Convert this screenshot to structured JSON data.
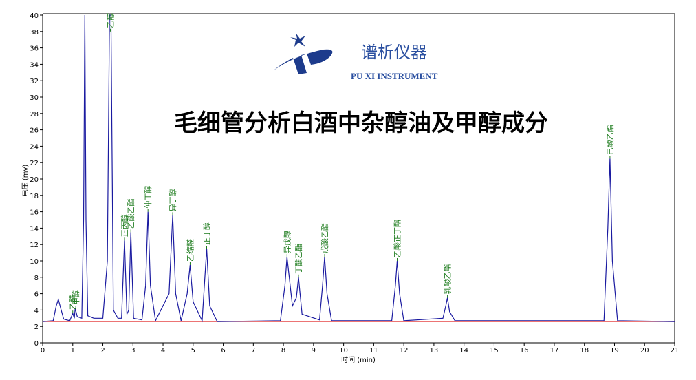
{
  "chart_data": {
    "type": "line",
    "title": "毛细管分析白酒中杂醇油及甲醇成分",
    "brand": {
      "name": "谱析仪器",
      "name_en": "PU XI INSTRUMENT"
    },
    "xlabel": "时间 (min)",
    "ylabel": "电压 (mv)",
    "xlim": [
      0,
      21
    ],
    "ylim": [
      0,
      40
    ],
    "xticks": [
      0,
      1,
      2,
      3,
      4,
      5,
      6,
      7,
      8,
      9,
      10,
      11,
      12,
      13,
      14,
      15,
      16,
      17,
      18,
      19,
      20,
      21
    ],
    "yticks": [
      0,
      2,
      4,
      6,
      8,
      10,
      12,
      14,
      16,
      18,
      20,
      22,
      24,
      26,
      28,
      30,
      32,
      34,
      36,
      38,
      40
    ],
    "x": [
      0,
      0.35,
      0.45,
      0.52,
      0.6,
      0.7,
      0.9,
      1.0,
      1.05,
      1.08,
      1.15,
      1.3,
      1.36,
      1.4,
      1.44,
      1.5,
      1.7,
      2.0,
      2.15,
      2.22,
      2.27,
      2.35,
      2.5,
      2.62,
      2.72,
      2.8,
      2.86,
      2.93,
      3.02,
      3.3,
      3.42,
      3.5,
      3.58,
      3.75,
      4.2,
      4.32,
      4.42,
      4.6,
      4.8,
      4.9,
      5.0,
      5.3,
      5.45,
      5.55,
      5.8,
      7.9,
      8.05,
      8.12,
      8.3,
      8.43,
      8.5,
      8.62,
      9.2,
      9.3,
      9.37,
      9.45,
      9.6,
      11.6,
      11.72,
      11.78,
      11.86,
      12.0,
      13.3,
      13.4,
      13.45,
      13.52,
      13.7,
      18.65,
      18.78,
      18.85,
      18.93,
      19.1,
      21
    ],
    "series": [
      {
        "color": "#1a1aa0",
        "values": [
          2.6,
          2.7,
          4.5,
          5.3,
          4.2,
          2.9,
          2.7,
          3.6,
          3.0,
          4.2,
          3.2,
          3.0,
          15,
          40,
          15,
          3.3,
          3.0,
          3.0,
          10,
          40,
          40,
          4,
          3.0,
          3.0,
          12.5,
          3.5,
          4,
          13.5,
          3.0,
          2.8,
          7,
          16,
          7,
          2.7,
          6,
          15.6,
          6,
          2.7,
          6,
          9.5,
          5,
          2.7,
          11.5,
          4.5,
          2.6,
          2.7,
          7,
          10.5,
          4.5,
          5.5,
          8,
          3.5,
          2.8,
          7,
          10.5,
          6,
          2.7,
          2.7,
          7,
          10,
          6,
          2.7,
          3.0,
          4.6,
          5.5,
          3.8,
          2.7,
          2.7,
          14,
          22.5,
          10,
          2.7,
          2.6
        ]
      }
    ],
    "baseline": {
      "color": "#e02020",
      "x": [
        0,
        21
      ],
      "values": [
        2.6,
        2.6
      ]
    },
    "annotation_color": "#1a7a1a",
    "annotations": [
      {
        "text": "乙醛",
        "x": 1.0,
        "y": 3.6
      },
      {
        "text": "甲醇",
        "x": 1.1,
        "y": 4.2
      },
      {
        "text": "乙醇",
        "x": 2.25,
        "y": 38
      },
      {
        "text": "正丙醇",
        "x": 2.72,
        "y": 12.5
      },
      {
        "text": "乙酸乙酯",
        "x": 2.93,
        "y": 13.5
      },
      {
        "text": "仲丁醇",
        "x": 3.5,
        "y": 16
      },
      {
        "text": "异丁醇",
        "x": 4.32,
        "y": 15.6
      },
      {
        "text": "乙缩醛",
        "x": 4.9,
        "y": 9.5
      },
      {
        "text": "正丁醇",
        "x": 5.45,
        "y": 11.5
      },
      {
        "text": "异戊醇",
        "x": 8.12,
        "y": 10.5
      },
      {
        "text": "丁酸乙酯",
        "x": 8.5,
        "y": 8
      },
      {
        "text": "戊酸乙酯",
        "x": 9.37,
        "y": 10.5
      },
      {
        "text": "乙酸正丁酯",
        "x": 11.78,
        "y": 10
      },
      {
        "text": "乳酸乙酯",
        "x": 13.45,
        "y": 5.5
      },
      {
        "text": "己酸乙酯",
        "x": 18.85,
        "y": 22.5
      }
    ]
  }
}
